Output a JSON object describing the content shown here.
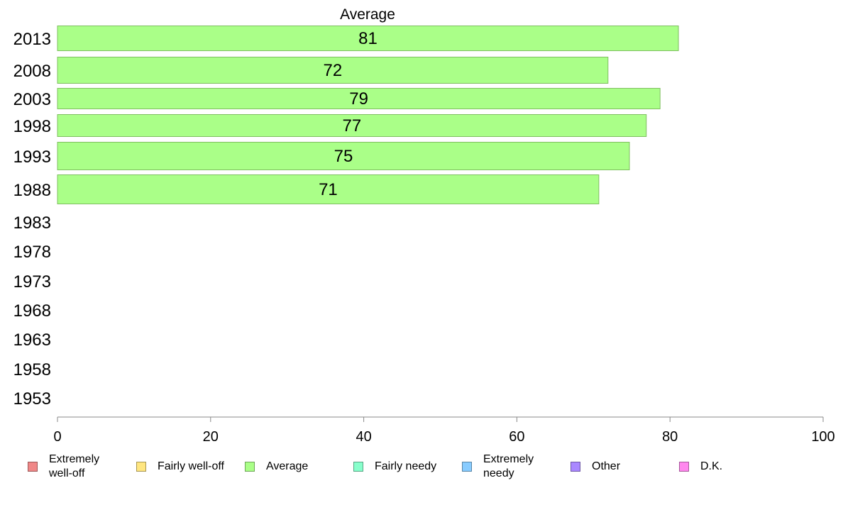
{
  "chart_data": {
    "type": "bar",
    "orientation": "horizontal",
    "title": "Average",
    "categories": [
      "2013",
      "2008",
      "2003",
      "1998",
      "1993",
      "1988",
      "1983",
      "1978",
      "1973",
      "1968",
      "1963",
      "1958",
      "1953"
    ],
    "series": [
      {
        "name": "Average",
        "color": "#aaff88",
        "values": [
          81.1,
          71.9,
          78.7,
          76.9,
          74.7,
          70.7,
          null,
          null,
          null,
          null,
          null,
          null,
          null
        ]
      }
    ],
    "data_labels": [
      "81",
      "72",
      "79",
      "77",
      "75",
      "71",
      "",
      "",
      "",
      "",
      "",
      "",
      ""
    ],
    "xlim": [
      0,
      100
    ],
    "xticks": [
      0,
      20,
      40,
      60,
      80,
      100
    ],
    "grid": false,
    "legend_position": "bottom"
  },
  "legend": [
    {
      "label": "Extremely\nwell-off",
      "color": "#f08888"
    },
    {
      "label": "Fairly well-off",
      "color": "#ffe680"
    },
    {
      "label": "Average",
      "color": "#aaff88"
    },
    {
      "label": "Fairly needy",
      "color": "#88ffcc"
    },
    {
      "label": "Extremely\nneedy",
      "color": "#88ccff"
    },
    {
      "label": "Other",
      "color": "#aa88ff"
    },
    {
      "label": "D.K.",
      "color": "#ff88ee"
    }
  ]
}
